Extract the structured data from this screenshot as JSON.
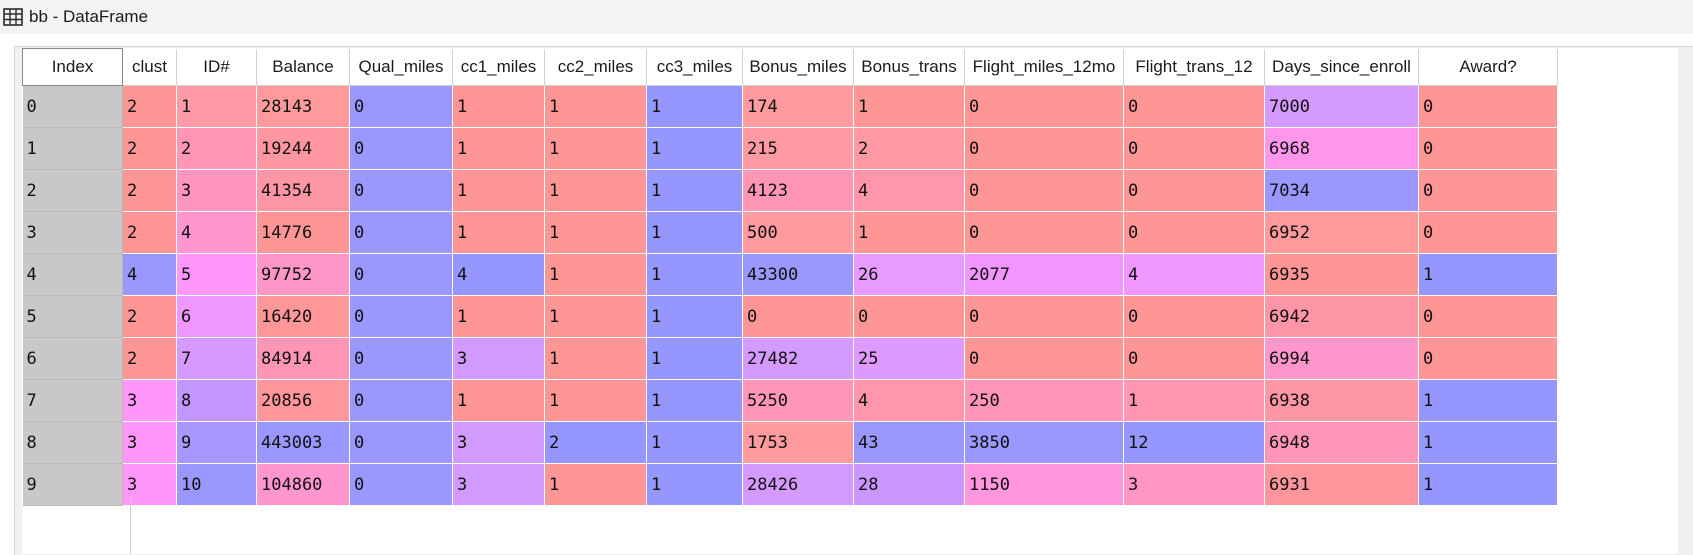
{
  "window": {
    "title": "bb - DataFrame",
    "icon": "table-grid-icon"
  },
  "table": {
    "index_header": "Index",
    "columns": [
      "clust",
      "ID#",
      "Balance",
      "Qual_miles",
      "cc1_miles",
      "cc2_miles",
      "cc3_miles",
      "Bonus_miles",
      "Bonus_trans",
      "Flight_miles_12mo",
      "Flight_trans_12",
      "Days_since_enroll",
      "Award?"
    ],
    "index": [
      "0",
      "1",
      "2",
      "3",
      "4",
      "5",
      "6",
      "7",
      "8",
      "9"
    ],
    "rows": [
      [
        "2",
        "1",
        "28143",
        "0",
        "1",
        "1",
        "1",
        "174",
        "1",
        "0",
        "0",
        "7000",
        "0"
      ],
      [
        "2",
        "2",
        "19244",
        "0",
        "1",
        "1",
        "1",
        "215",
        "2",
        "0",
        "0",
        "6968",
        "0"
      ],
      [
        "2",
        "3",
        "41354",
        "0",
        "1",
        "1",
        "1",
        "4123",
        "4",
        "0",
        "0",
        "7034",
        "0"
      ],
      [
        "2",
        "4",
        "14776",
        "0",
        "1",
        "1",
        "1",
        "500",
        "1",
        "0",
        "0",
        "6952",
        "0"
      ],
      [
        "4",
        "5",
        "97752",
        "0",
        "4",
        "1",
        "1",
        "43300",
        "26",
        "2077",
        "4",
        "6935",
        "1"
      ],
      [
        "2",
        "6",
        "16420",
        "0",
        "1",
        "1",
        "1",
        "0",
        "0",
        "0",
        "0",
        "6942",
        "0"
      ],
      [
        "2",
        "7",
        "84914",
        "0",
        "3",
        "1",
        "1",
        "27482",
        "25",
        "0",
        "0",
        "6994",
        "0"
      ],
      [
        "3",
        "8",
        "20856",
        "0",
        "1",
        "1",
        "1",
        "5250",
        "4",
        "250",
        "1",
        "6938",
        "1"
      ],
      [
        "3",
        "9",
        "443003",
        "0",
        "3",
        "2",
        "1",
        "1753",
        "43",
        "3850",
        "12",
        "6948",
        "1"
      ],
      [
        "3",
        "10",
        "104860",
        "0",
        "3",
        "1",
        "1",
        "28426",
        "28",
        "1150",
        "3",
        "6931",
        "1"
      ]
    ],
    "cell_colors": [
      [
        "#ff9696",
        "#ff9aa6",
        "#ff9a9c",
        "#9a98ff",
        "#ff9496",
        "#ff9696",
        "#9696ff",
        "#ff9a9e",
        "#ff9696",
        "#ff9696",
        "#ff9696",
        "#d59aff",
        "#ff9696"
      ],
      [
        "#ff9696",
        "#ff96b4",
        "#ff96a0",
        "#9a98ff",
        "#ff9496",
        "#ff9696",
        "#9696ff",
        "#ff9aa2",
        "#ff9aa4",
        "#ff9696",
        "#ff9696",
        "#ff96ec",
        "#ff9696"
      ],
      [
        "#ff9696",
        "#ff96c0",
        "#ff96a6",
        "#9a98ff",
        "#ff9496",
        "#ff9696",
        "#9696ff",
        "#ff96b6",
        "#ff96ac",
        "#ff9696",
        "#ff9696",
        "#9a98ff",
        "#ff9696"
      ],
      [
        "#ff9696",
        "#ff96cf",
        "#ff9696",
        "#9a98ff",
        "#ff9496",
        "#ff9696",
        "#9696ff",
        "#ff9aa0",
        "#ff9696",
        "#ff9696",
        "#ff9696",
        "#ff9a9a",
        "#ff9696"
      ],
      [
        "#9a98ff",
        "#ff96fa",
        "#ff96c8",
        "#9a98ff",
        "#9696ff",
        "#ff9696",
        "#9696ff",
        "#9a98ff",
        "#e79aff",
        "#f196ff",
        "#f096ff",
        "#ff9696",
        "#9696ff"
      ],
      [
        "#ff9696",
        "#f096ff",
        "#ff9698",
        "#9a98ff",
        "#ff9496",
        "#ff9696",
        "#9696ff",
        "#ff9696",
        "#ff9696",
        "#ff9696",
        "#ff9696",
        "#ff96a8",
        "#ff9696"
      ],
      [
        "#ff9696",
        "#d69aff",
        "#ff96b6",
        "#9a98ff",
        "#d09aff",
        "#ff9696",
        "#9696ff",
        "#d59aff",
        "#de9aff",
        "#ff9696",
        "#ff9696",
        "#ff96cc",
        "#ff9696"
      ],
      [
        "#ff96fa",
        "#c496ff",
        "#ff969c",
        "#9a98ff",
        "#ff9496",
        "#ff9696",
        "#9696ff",
        "#ff96b8",
        "#ff96ac",
        "#ff96b8",
        "#ff96b2",
        "#ff96a4",
        "#9696ff"
      ],
      [
        "#ff96fa",
        "#aa96ff",
        "#9a98ff",
        "#9a98ff",
        "#d09aff",
        "#9696ff",
        "#9696ff",
        "#ff9a9e",
        "#9a98ff",
        "#9a98ff",
        "#9696ff",
        "#ff96b8",
        "#9696ff"
      ],
      [
        "#ff96fa",
        "#9a98ff",
        "#ff96d0",
        "#9a98ff",
        "#d09aff",
        "#ff9696",
        "#9696ff",
        "#d59aff",
        "#ca96ff",
        "#ff96de",
        "#ff96c4",
        "#ff969e",
        "#9696ff"
      ]
    ]
  }
}
